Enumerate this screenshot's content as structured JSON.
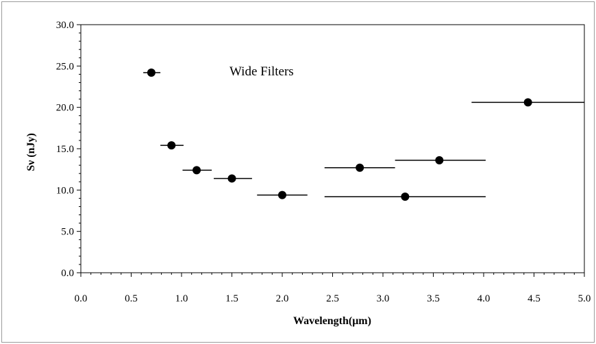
{
  "chart_data": {
    "type": "scatter",
    "title": "",
    "annotation": "Wide Filters",
    "xlabel": "Wavelength(μm)",
    "ylabel": "Sν (nJy)",
    "xlim": [
      0.0,
      5.0
    ],
    "ylim": [
      0.0,
      30.0
    ],
    "x_ticks": [
      "0.0",
      "0.5",
      "1.0",
      "1.5",
      "2.0",
      "2.5",
      "3.0",
      "3.5",
      "4.0",
      "4.5",
      "5.0"
    ],
    "y_ticks": [
      "0.0",
      "5.0",
      "10.0",
      "15.0",
      "20.0",
      "25.0",
      "30.0"
    ],
    "grid": false,
    "legend": false,
    "marker_color": "#000000",
    "series": [
      {
        "points": [
          {
            "x": 0.7,
            "y": 24.2,
            "xmin": 0.62,
            "xmax": 0.79
          },
          {
            "x": 0.9,
            "y": 15.4,
            "xmin": 0.79,
            "xmax": 1.02
          },
          {
            "x": 1.15,
            "y": 12.4,
            "xmin": 1.01,
            "xmax": 1.3
          },
          {
            "x": 1.5,
            "y": 11.4,
            "xmin": 1.32,
            "xmax": 1.7
          },
          {
            "x": 2.0,
            "y": 9.4,
            "xmin": 1.75,
            "xmax": 2.25
          },
          {
            "x": 2.77,
            "y": 12.7,
            "xmin": 2.42,
            "xmax": 3.12
          },
          {
            "x": 3.22,
            "y": 9.2,
            "xmin": 2.42,
            "xmax": 4.02
          },
          {
            "x": 3.56,
            "y": 13.6,
            "xmin": 3.12,
            "xmax": 4.02
          },
          {
            "x": 4.44,
            "y": 20.6,
            "xmin": 3.88,
            "xmax": 5.0
          }
        ]
      }
    ]
  }
}
